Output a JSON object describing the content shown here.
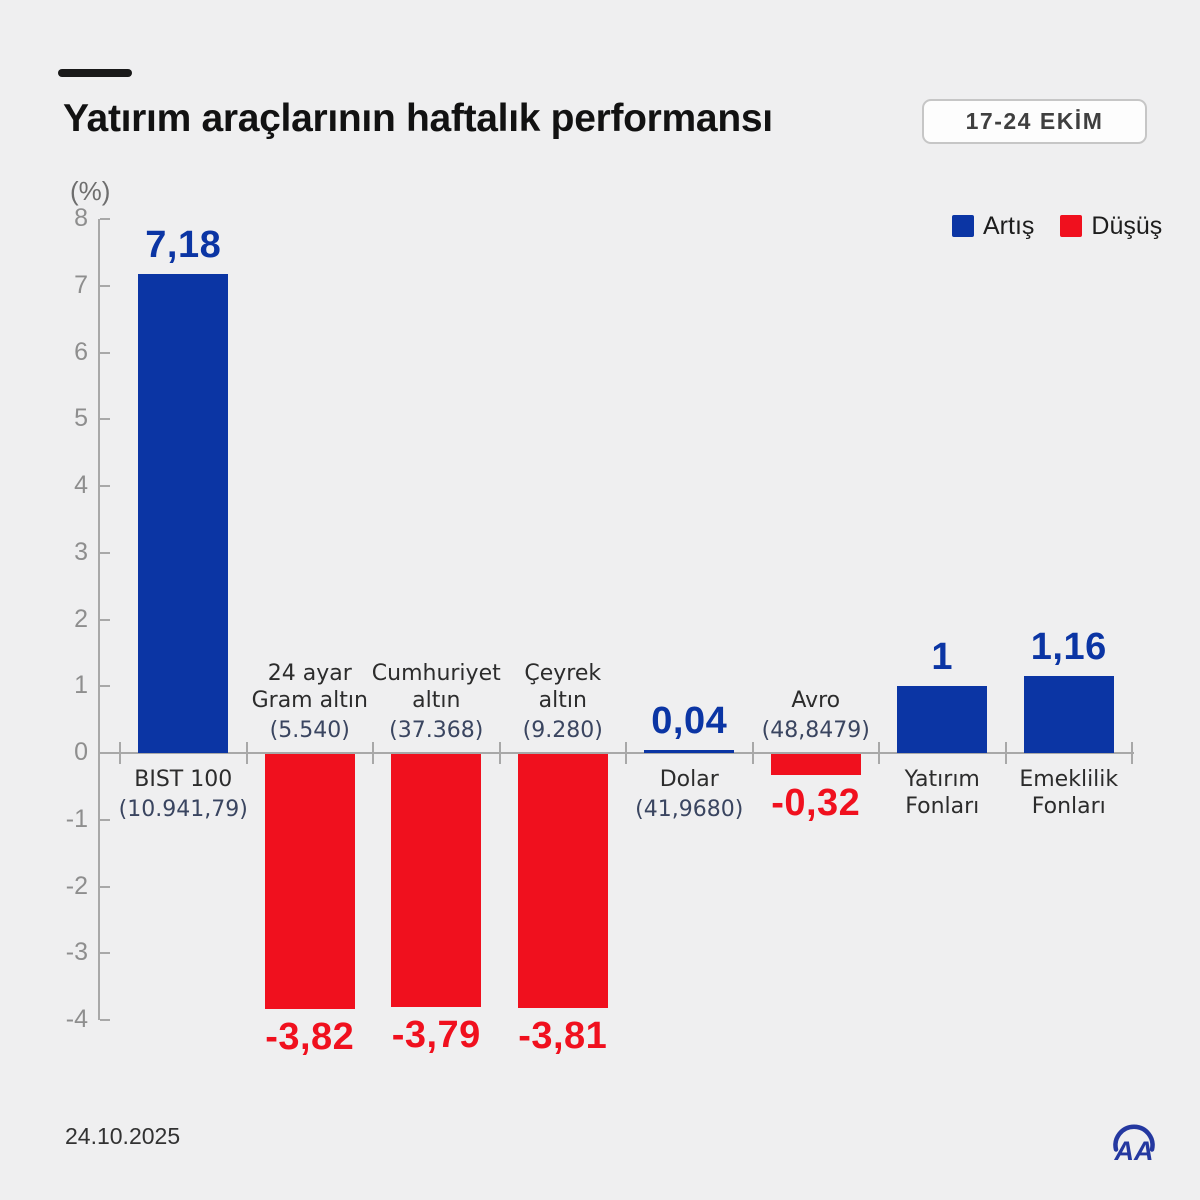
{
  "header": {
    "title": "Yatırım araçlarının haftalık performansı",
    "period_badge": "17-24 EKİM"
  },
  "legend": {
    "up_label": "Artış",
    "down_label": "Düşüş"
  },
  "footer": {
    "date": "24.10.2025",
    "logo": "AA"
  },
  "colors": {
    "up": "#0b35a4",
    "down": "#f0101e",
    "axis": "#a8a8a8",
    "tick_text": "#8e8e8e",
    "name_text": "#2c2c2c",
    "detail_text": "#3a4560",
    "background": "#efeff0"
  },
  "chart_data": {
    "type": "bar",
    "title": "Yatırım araçlarının haftalık performansı",
    "period": "17-24 EKİM",
    "ylabel": "(%)",
    "xlabel": "",
    "ylim": [
      -4,
      8
    ],
    "yticks": [
      8,
      7,
      6,
      5,
      4,
      3,
      2,
      1,
      0,
      -1,
      -2,
      -3,
      -4
    ],
    "grid": false,
    "legend": [
      "Artış",
      "Düşüş"
    ],
    "legend_position": "top-right",
    "categories": [
      {
        "name": "BIST 100",
        "name_lines": [
          "BIST 100"
        ],
        "detail": "(10.941,79)",
        "value": 7.18,
        "value_label": "7,18",
        "direction": "up",
        "label_side": "below"
      },
      {
        "name": "24 ayar Gram altın",
        "name_lines": [
          "24 ayar",
          "Gram altın"
        ],
        "detail": "(5.540)",
        "value": -3.82,
        "value_label": "-3,82",
        "direction": "down",
        "label_side": "above"
      },
      {
        "name": "Cumhuriyet altın",
        "name_lines": [
          "Cumhuriyet",
          "altın"
        ],
        "detail": "(37.368)",
        "value": -3.79,
        "value_label": "-3,79",
        "direction": "down",
        "label_side": "above"
      },
      {
        "name": "Çeyrek altın",
        "name_lines": [
          "Çeyrek",
          "altın"
        ],
        "detail": "(9.280)",
        "value": -3.81,
        "value_label": "-3,81",
        "direction": "down",
        "label_side": "above"
      },
      {
        "name": "Dolar",
        "name_lines": [
          "Dolar"
        ],
        "detail": "(41,9680)",
        "value": 0.04,
        "value_label": "0,04",
        "direction": "up",
        "label_side": "below"
      },
      {
        "name": "Avro",
        "name_lines": [
          "Avro"
        ],
        "detail": "(48,8479)",
        "value": -0.32,
        "value_label": "-0,32",
        "direction": "down",
        "label_side": "above"
      },
      {
        "name": "Yatırım Fonları",
        "name_lines": [
          "Yatırım",
          "Fonları"
        ],
        "detail": null,
        "value": 1,
        "value_label": "1",
        "direction": "up",
        "label_side": "below"
      },
      {
        "name": "Emeklilik Fonları",
        "name_lines": [
          "Emeklilik",
          "Fonları"
        ],
        "detail": null,
        "value": 1.16,
        "value_label": "1,16",
        "direction": "up",
        "label_side": "below"
      }
    ]
  }
}
